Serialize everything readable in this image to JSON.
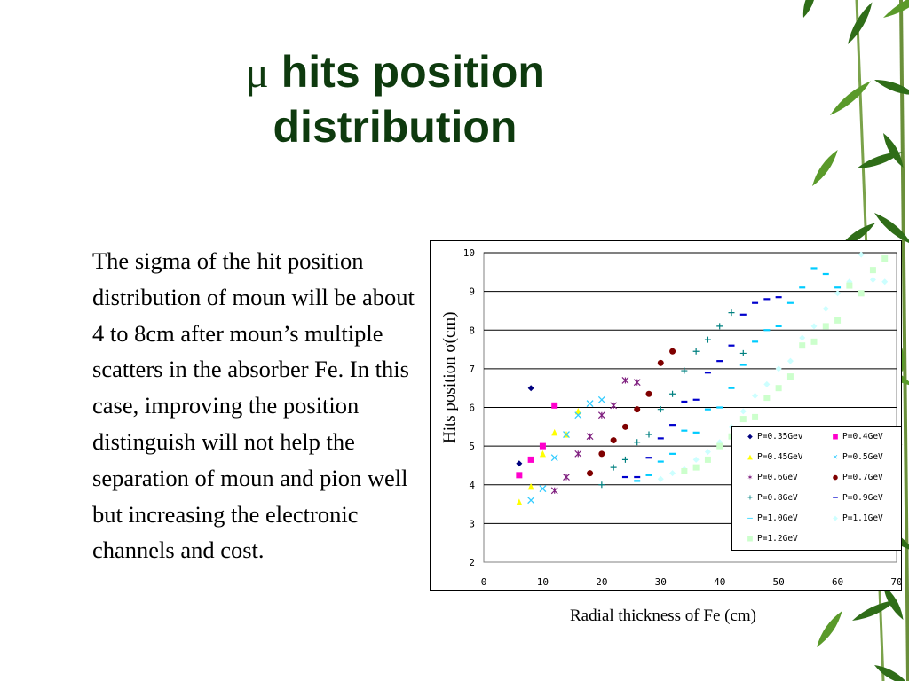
{
  "slide": {
    "title_symbol": "μ",
    "title_text": "hits position distribution",
    "body_text": "The sigma of the hit position distribution of moun will be about 4 to 8cm after moun’s multiple scatters in the absorber Fe. In this case, improving the position distinguish will not help the separation of moun and pion well but increasing the electronic channels and cost."
  },
  "colors": {
    "title": "#0e3a0e",
    "bamboo_leaf": "#2f6d18",
    "bamboo_leaf_light": "#5a9a2a"
  },
  "chart_data": {
    "type": "scatter",
    "xlabel": "Radial thickness of Fe (cm)",
    "ylabel": "Hits position σ(cm)",
    "xlim": [
      0,
      70
    ],
    "ylim": [
      2,
      10
    ],
    "xticks": [
      "0",
      "10",
      "20",
      "30",
      "40",
      "50",
      "60",
      "70"
    ],
    "yticks": [
      "2",
      "3",
      "4",
      "5",
      "6",
      "7",
      "8",
      "9",
      "10"
    ],
    "grid": "horizontal",
    "legend_position": "lower-right",
    "series": [
      {
        "name": "P=0.35Gev",
        "marker": "diamond",
        "color": "#00007f",
        "x": [
          6,
          8
        ],
        "y": [
          4.55,
          6.5
        ]
      },
      {
        "name": "P=0.4GeV",
        "marker": "square",
        "color": "#ff00cc",
        "x": [
          6,
          8,
          10,
          12
        ],
        "y": [
          4.25,
          4.65,
          5.0,
          6.05
        ]
      },
      {
        "name": "P=0.45GeV",
        "marker": "triangle",
        "color": "#ffff00",
        "x": [
          6,
          8,
          10,
          12,
          14,
          16
        ],
        "y": [
          3.55,
          3.95,
          4.8,
          5.35,
          5.3,
          5.9
        ]
      },
      {
        "name": "P=0.5GeV",
        "marker": "x",
        "color": "#33ccff",
        "x": [
          8,
          10,
          12,
          14,
          16,
          18,
          20
        ],
        "y": [
          3.6,
          3.9,
          4.7,
          5.3,
          5.8,
          6.1,
          6.2
        ]
      },
      {
        "name": "P=0.6GeV",
        "marker": "star",
        "color": "#7f1f7f",
        "x": [
          12,
          14,
          16,
          18,
          20,
          22,
          24,
          26
        ],
        "y": [
          3.85,
          4.2,
          4.8,
          5.25,
          5.8,
          6.05,
          6.7,
          6.65
        ]
      },
      {
        "name": "P=0.7GeV",
        "marker": "circle",
        "color": "#7f0000",
        "x": [
          18,
          20,
          22,
          24,
          26,
          28,
          30,
          32
        ],
        "y": [
          4.3,
          4.8,
          5.15,
          5.5,
          5.95,
          6.35,
          7.15,
          7.45
        ]
      },
      {
        "name": "P=0.8GeV",
        "marker": "plus",
        "color": "#008080",
        "x": [
          20,
          22,
          24,
          26,
          28,
          30,
          32,
          34,
          36,
          38,
          40,
          42,
          44
        ],
        "y": [
          4.0,
          4.45,
          4.65,
          5.1,
          5.3,
          5.95,
          6.35,
          6.95,
          7.45,
          7.75,
          8.1,
          8.45,
          7.4
        ]
      },
      {
        "name": "P=0.9GeV",
        "marker": "dash",
        "color": "#0000cc",
        "x": [
          24,
          26,
          28,
          30,
          32,
          34,
          36,
          38,
          40,
          42,
          44,
          46,
          48,
          50
        ],
        "y": [
          4.2,
          4.2,
          4.7,
          5.2,
          5.55,
          6.15,
          6.2,
          6.9,
          7.2,
          7.6,
          8.4,
          8.7,
          8.8,
          8.85
        ]
      },
      {
        "name": "P=1.0GeV",
        "marker": "dash",
        "color": "#00ccff",
        "x": [
          26,
          28,
          30,
          32,
          34,
          36,
          38,
          40,
          42,
          44,
          46,
          48,
          50,
          52,
          54,
          56,
          58,
          60
        ],
        "y": [
          4.1,
          4.25,
          4.6,
          4.8,
          5.4,
          5.35,
          5.95,
          6.0,
          6.5,
          7.1,
          7.7,
          8.0,
          8.1,
          8.7,
          9.1,
          9.6,
          9.45,
          9.1
        ]
      },
      {
        "name": "P=1.1GeV",
        "marker": "diamond",
        "color": "#ccffff",
        "x": [
          30,
          32,
          34,
          36,
          38,
          40,
          42,
          44,
          46,
          48,
          50,
          52,
          54,
          56,
          58,
          60,
          62,
          64,
          66,
          68
        ],
        "y": [
          4.15,
          4.3,
          4.4,
          4.65,
          4.85,
          5.1,
          5.5,
          5.9,
          6.3,
          6.6,
          7.0,
          7.2,
          7.8,
          8.1,
          8.55,
          8.95,
          9.25,
          9.95,
          9.3,
          9.25
        ]
      },
      {
        "name": "P=1.2GeV",
        "marker": "square",
        "color": "#ccffcc",
        "x": [
          34,
          36,
          38,
          40,
          42,
          44,
          46,
          48,
          50,
          52,
          54,
          56,
          58,
          60,
          62,
          64,
          66,
          68
        ],
        "y": [
          4.35,
          4.45,
          4.65,
          5.0,
          5.25,
          5.7,
          5.75,
          6.25,
          6.5,
          6.8,
          7.6,
          7.7,
          8.1,
          8.25,
          9.15,
          8.95,
          9.55,
          9.85
        ]
      }
    ]
  }
}
